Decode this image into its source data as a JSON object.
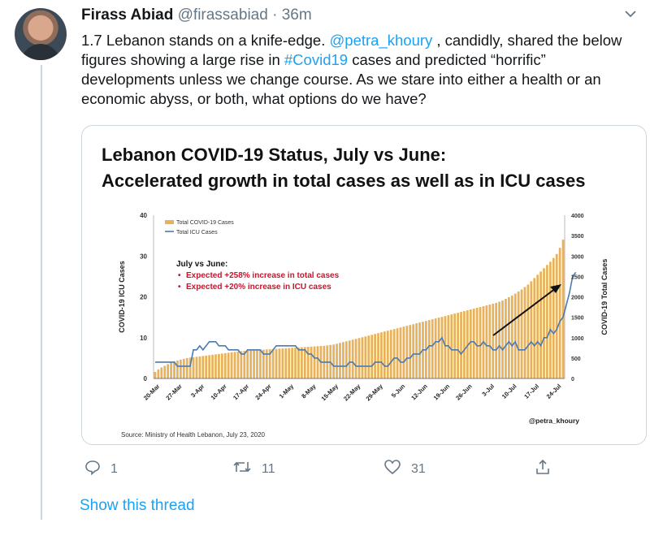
{
  "tweet": {
    "author_name": "Firass Abiad",
    "handle": "@firassabiad",
    "separator": "·",
    "time": "36m",
    "text_parts": {
      "p1": "1.7 Lebanon stands on a knife-edge. ",
      "mention": "@petra_khoury",
      "p2": " , candidly, shared the below figures showing a large rise in ",
      "hashtag": "#Covid19",
      "p3": " cases and predicted “horrific” developments unless we change course. As we stare into either a health or an economic abyss, or both, what options do we have?"
    },
    "actions": {
      "replies": "1",
      "retweets": "11",
      "likes": "31"
    },
    "show_thread": "Show this thread"
  },
  "icons": {
    "reply": "reply-icon",
    "retweet": "retweet-icon",
    "like": "heart-icon",
    "share": "share-icon",
    "more": "chevron-down-icon"
  },
  "colors": {
    "accent": "#1da1f2",
    "bars": "#e8b25b",
    "icu_line": "#4a7ab0",
    "annotation_red": "#d0112b"
  },
  "chart_data": {
    "type": "bar",
    "title": "Lebanon COVID-19 Status, July vs June:",
    "subtitle": "Accelerated growth in total cases as well as in ICU cases",
    "ylabel_left": "COVID-19 ICU Cases",
    "ylabel_right": "COVID-19 Total Cases",
    "ylim_left": [
      0,
      40
    ],
    "ylim_right": [
      0,
      4000
    ],
    "yticks_left": [
      "0",
      "10",
      "20",
      "30",
      "40"
    ],
    "yticks_right": [
      "0",
      "500",
      "1000",
      "1500",
      "2000",
      "2500",
      "3000",
      "3500",
      "4000"
    ],
    "x_tick_labels": [
      "20-Mar",
      "27-Mar",
      "3-Apr",
      "10-Apr",
      "17-Apr",
      "24-Apr",
      "1-May",
      "8-May",
      "15-May",
      "22-May",
      "29-May",
      "5-Jun",
      "12-Jun",
      "19-Jun",
      "26-Jun",
      "3-Jul",
      "10-Jul",
      "17-Jul",
      "24-Jul"
    ],
    "legend": [
      "Total COVID-19 Cases",
      "Total ICU Cases"
    ],
    "legend_placement": "top-left",
    "annotation": {
      "heading": "July vs June:",
      "bullets": [
        "Expected +258% increase in total cases",
        "Expected +20% increase in ICU cases"
      ]
    },
    "credit": "@petra_khoury",
    "source": "Source: Ministry of Health Lebanon, July 23, 2020",
    "series": [
      {
        "name": "Total COVID-19 Cases",
        "axis": "right",
        "start_date": "20-Mar",
        "values": [
          160,
          220,
          270,
          310,
          350,
          390,
          420,
          440,
          460,
          480,
          500,
          510,
          520,
          530,
          540,
          550,
          560,
          570,
          580,
          590,
          600,
          610,
          620,
          630,
          640,
          650,
          660,
          670,
          675,
          680,
          685,
          690,
          695,
          700,
          705,
          710,
          715,
          720,
          725,
          730,
          735,
          740,
          745,
          750,
          755,
          760,
          765,
          770,
          775,
          780,
          785,
          790,
          795,
          800,
          810,
          820,
          830,
          850,
          870,
          890,
          910,
          930,
          950,
          970,
          990,
          1010,
          1030,
          1050,
          1070,
          1090,
          1110,
          1130,
          1150,
          1170,
          1190,
          1210,
          1230,
          1250,
          1270,
          1290,
          1310,
          1330,
          1350,
          1370,
          1390,
          1410,
          1430,
          1450,
          1470,
          1490,
          1510,
          1530,
          1550,
          1570,
          1590,
          1610,
          1630,
          1650,
          1670,
          1690,
          1710,
          1730,
          1750,
          1770,
          1790,
          1810,
          1830,
          1850,
          1880,
          1910,
          1950,
          1990,
          2030,
          2080,
          2130,
          2180,
          2240,
          2300,
          2380,
          2460,
          2540,
          2620,
          2700,
          2780,
          2860,
          2950,
          3050,
          3200,
          3400
        ]
      },
      {
        "name": "Total ICU Cases",
        "axis": "left",
        "values": [
          4,
          4,
          4,
          4,
          4,
          4,
          4,
          3,
          3,
          3,
          3,
          3,
          7,
          7,
          8,
          7,
          8,
          9,
          9,
          9,
          8,
          8,
          8,
          7,
          7,
          7,
          7,
          6,
          6,
          7,
          7,
          7,
          7,
          7,
          6,
          6,
          6,
          7,
          8,
          8,
          8,
          8,
          8,
          8,
          8,
          7,
          7,
          7,
          6,
          6,
          5,
          5,
          4,
          4,
          4,
          4,
          3,
          3,
          3,
          3,
          3,
          4,
          4,
          3,
          3,
          3,
          3,
          3,
          3,
          4,
          4,
          4,
          3,
          3,
          4,
          5,
          5,
          4,
          4,
          5,
          5,
          6,
          6,
          6,
          7,
          7,
          8,
          8,
          9,
          9,
          10,
          8,
          8,
          7,
          7,
          7,
          6,
          7,
          8,
          9,
          9,
          8,
          8,
          9,
          8,
          8,
          7,
          7,
          8,
          7,
          8,
          9,
          8,
          9,
          7,
          7,
          7,
          8,
          9,
          8,
          9,
          8,
          10,
          10,
          12,
          11,
          12,
          14,
          15,
          18,
          21,
          25,
          26
        ]
      }
    ]
  }
}
